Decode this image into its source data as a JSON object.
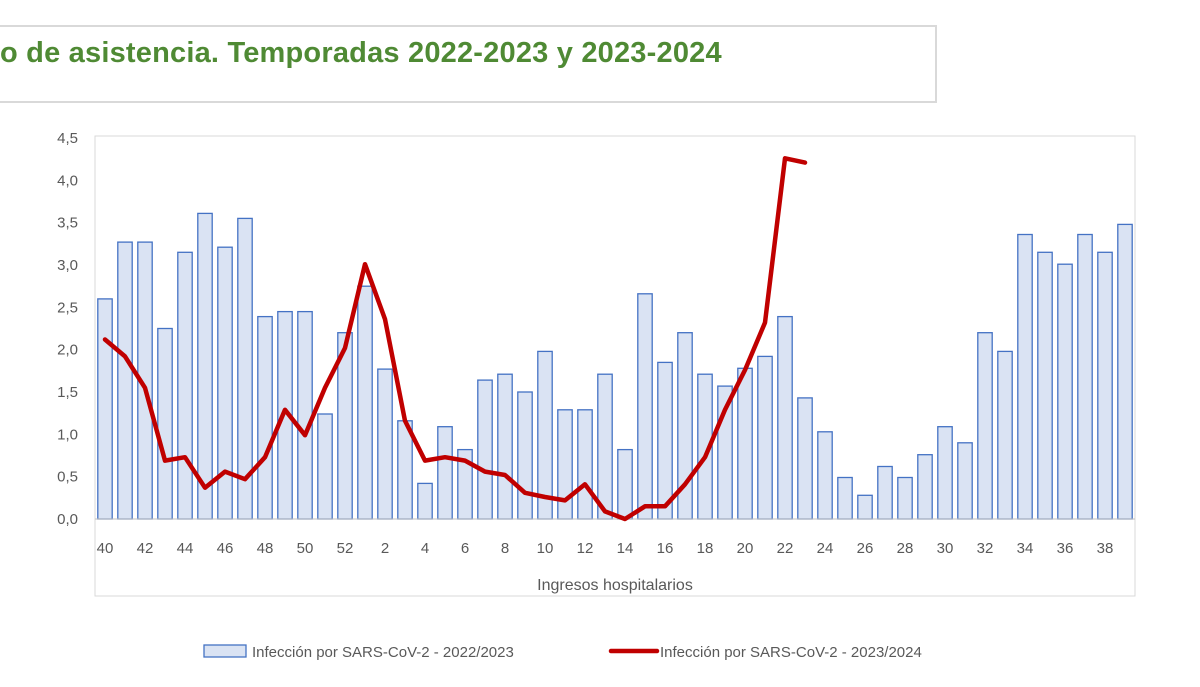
{
  "title": "o de asistencia. Temporadas 2022-2023 y 2023-2024",
  "chart_data": {
    "type": "bar",
    "title": "o de asistencia. Temporadas 2022-2023 y 2023-2024",
    "xlabel": "Ingresos hospitalarios",
    "ylabel": "",
    "ylim": [
      0,
      4.5
    ],
    "yticks": [
      "0,0",
      "0,5",
      "1,0",
      "1,5",
      "2,0",
      "2,5",
      "3,0",
      "3,5",
      "4,0",
      "4,5"
    ],
    "grid": false,
    "legend_position": "bottom",
    "categories": [
      "40",
      "41",
      "42",
      "43",
      "44",
      "45",
      "46",
      "47",
      "48",
      "49",
      "50",
      "51",
      "52",
      "1",
      "2",
      "3",
      "4",
      "5",
      "6",
      "7",
      "8",
      "9",
      "10",
      "11",
      "12",
      "13",
      "14",
      "15",
      "16",
      "17",
      "18",
      "19",
      "20",
      "21",
      "22",
      "23",
      "24",
      "25",
      "26",
      "27",
      "28",
      "29",
      "30",
      "31",
      "32",
      "33",
      "34",
      "35",
      "36",
      "37",
      "38",
      "39"
    ],
    "xtick_labels": [
      "40",
      "",
      "42",
      "",
      "44",
      "",
      "46",
      "",
      "48",
      "",
      "50",
      "",
      "52",
      "",
      "2",
      "",
      "4",
      "",
      "6",
      "",
      "8",
      "",
      "10",
      "",
      "12",
      "",
      "14",
      "",
      "16",
      "",
      "18",
      "",
      "20",
      "",
      "22",
      "",
      "24",
      "",
      "26",
      "",
      "28",
      "",
      "30",
      "",
      "32",
      "",
      "34",
      "",
      "36",
      "",
      "38",
      ""
    ],
    "series": [
      {
        "name": "Infección por SARS-CoV-2 - 2022/2023",
        "type": "bar",
        "color": "#dae3f3",
        "edge_color": "#4472c4",
        "values": [
          2.6,
          3.27,
          3.27,
          2.25,
          3.15,
          3.61,
          3.21,
          3.55,
          2.39,
          2.45,
          2.45,
          1.24,
          2.2,
          2.75,
          1.77,
          1.16,
          0.42,
          1.09,
          0.82,
          1.64,
          1.71,
          1.5,
          1.98,
          1.29,
          1.29,
          1.71,
          0.82,
          2.66,
          1.85,
          2.2,
          1.71,
          1.57,
          1.78,
          1.92,
          2.39,
          1.43,
          1.03,
          0.49,
          0.28,
          0.62,
          0.49,
          0.76,
          1.09,
          0.9,
          2.2,
          1.98,
          3.36,
          3.15,
          3.01,
          3.36,
          3.15,
          3.48
        ]
      },
      {
        "name": "Infección por SARS-CoV-2 - 2023/2024",
        "type": "line",
        "color": "#c00000",
        "values": [
          2.12,
          1.92,
          1.55,
          0.69,
          0.73,
          0.37,
          0.56,
          0.47,
          0.73,
          1.29,
          0.99,
          1.55,
          2.02,
          3.01,
          2.36,
          1.16,
          0.69,
          0.73,
          0.69,
          0.56,
          0.52,
          0.31,
          0.26,
          0.22,
          0.41,
          0.09,
          0.0,
          0.15,
          0.15,
          0.41,
          0.73,
          1.29,
          1.76,
          2.32,
          4.26,
          4.21,
          null,
          null,
          null,
          null,
          null,
          null,
          null,
          null,
          null,
          null,
          null,
          null,
          null,
          null,
          null,
          null
        ]
      }
    ]
  }
}
